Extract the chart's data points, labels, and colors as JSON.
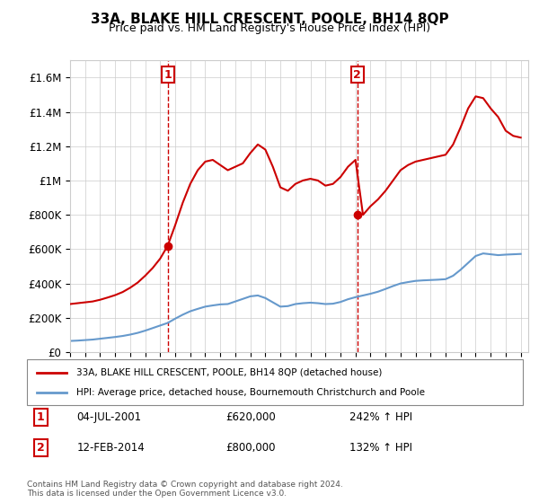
{
  "title": "33A, BLAKE HILL CRESCENT, POOLE, BH14 8QP",
  "subtitle": "Price paid vs. HM Land Registry's House Price Index (HPI)",
  "xlabel": "",
  "ylabel": "",
  "ylim": [
    0,
    1700000
  ],
  "xlim_start": 1995.0,
  "xlim_end": 2025.5,
  "sale1_date": 2001.5,
  "sale1_price": 620000,
  "sale2_date": 2014.12,
  "sale2_price": 800000,
  "legend_line1": "33A, BLAKE HILL CRESCENT, POOLE, BH14 8QP (detached house)",
  "legend_line2": "HPI: Average price, detached house, Bournemouth Christchurch and Poole",
  "table_row1_num": "1",
  "table_row1_date": "04-JUL-2001",
  "table_row1_price": "£620,000",
  "table_row1_hpi": "242% ↑ HPI",
  "table_row2_num": "2",
  "table_row2_date": "12-FEB-2014",
  "table_row2_price": "£800,000",
  "table_row2_hpi": "132% ↑ HPI",
  "footer": "Contains HM Land Registry data © Crown copyright and database right 2024.\nThis data is licensed under the Open Government Licence v3.0.",
  "red_color": "#cc0000",
  "blue_color": "#6699cc",
  "dashed_red": "#cc0000",
  "background_color": "#ffffff",
  "hpi_years": [
    1995,
    1995.5,
    1996,
    1996.5,
    1997,
    1997.5,
    1998,
    1998.5,
    1999,
    1999.5,
    2000,
    2000.5,
    2001,
    2001.5,
    2002,
    2002.5,
    2003,
    2003.5,
    2004,
    2004.5,
    2005,
    2005.5,
    2006,
    2006.5,
    2007,
    2007.5,
    2008,
    2008.5,
    2009,
    2009.5,
    2010,
    2010.5,
    2011,
    2011.5,
    2012,
    2012.5,
    2013,
    2013.5,
    2014,
    2014.5,
    2015,
    2015.5,
    2016,
    2016.5,
    2017,
    2017.5,
    2018,
    2018.5,
    2019,
    2019.5,
    2020,
    2020.5,
    2021,
    2021.5,
    2022,
    2022.5,
    2023,
    2023.5,
    2024,
    2024.5,
    2025
  ],
  "hpi_values": [
    65000,
    67000,
    70000,
    73000,
    78000,
    83000,
    88000,
    94000,
    102000,
    112000,
    125000,
    140000,
    155000,
    170000,
    195000,
    218000,
    238000,
    252000,
    265000,
    272000,
    278000,
    280000,
    295000,
    310000,
    325000,
    330000,
    315000,
    290000,
    265000,
    268000,
    280000,
    285000,
    288000,
    285000,
    280000,
    282000,
    292000,
    308000,
    320000,
    330000,
    340000,
    352000,
    368000,
    385000,
    400000,
    408000,
    415000,
    418000,
    420000,
    422000,
    425000,
    445000,
    480000,
    520000,
    560000,
    575000,
    570000,
    565000,
    568000,
    570000,
    572000
  ],
  "price_years": [
    1995,
    1995.5,
    1996,
    1996.5,
    1997,
    1997.5,
    1998,
    1998.5,
    1999,
    1999.5,
    2000,
    2000.5,
    2001,
    2001.5,
    2002,
    2002.5,
    2003,
    2003.5,
    2004,
    2004.5,
    2005,
    2005.5,
    2006,
    2006.5,
    2007,
    2007.5,
    2008,
    2008.5,
    2009,
    2009.5,
    2010,
    2010.5,
    2011,
    2011.5,
    2012,
    2012.5,
    2013,
    2013.5,
    2014,
    2014.5,
    2015,
    2015.5,
    2016,
    2016.5,
    2017,
    2017.5,
    2018,
    2018.5,
    2019,
    2019.5,
    2020,
    2020.5,
    2021,
    2021.5,
    2022,
    2022.5,
    2023,
    2023.5,
    2024,
    2024.5,
    2025
  ],
  "price_values": [
    280000,
    285000,
    290000,
    295000,
    305000,
    318000,
    332000,
    350000,
    375000,
    405000,
    445000,
    490000,
    545000,
    620000,
    740000,
    870000,
    980000,
    1060000,
    1110000,
    1120000,
    1090000,
    1060000,
    1080000,
    1100000,
    1160000,
    1210000,
    1180000,
    1080000,
    960000,
    940000,
    980000,
    1000000,
    1010000,
    1000000,
    970000,
    980000,
    1020000,
    1080000,
    1120000,
    800000,
    850000,
    890000,
    940000,
    1000000,
    1060000,
    1090000,
    1110000,
    1120000,
    1130000,
    1140000,
    1150000,
    1210000,
    1310000,
    1420000,
    1490000,
    1480000,
    1420000,
    1370000,
    1290000,
    1260000,
    1250000
  ]
}
